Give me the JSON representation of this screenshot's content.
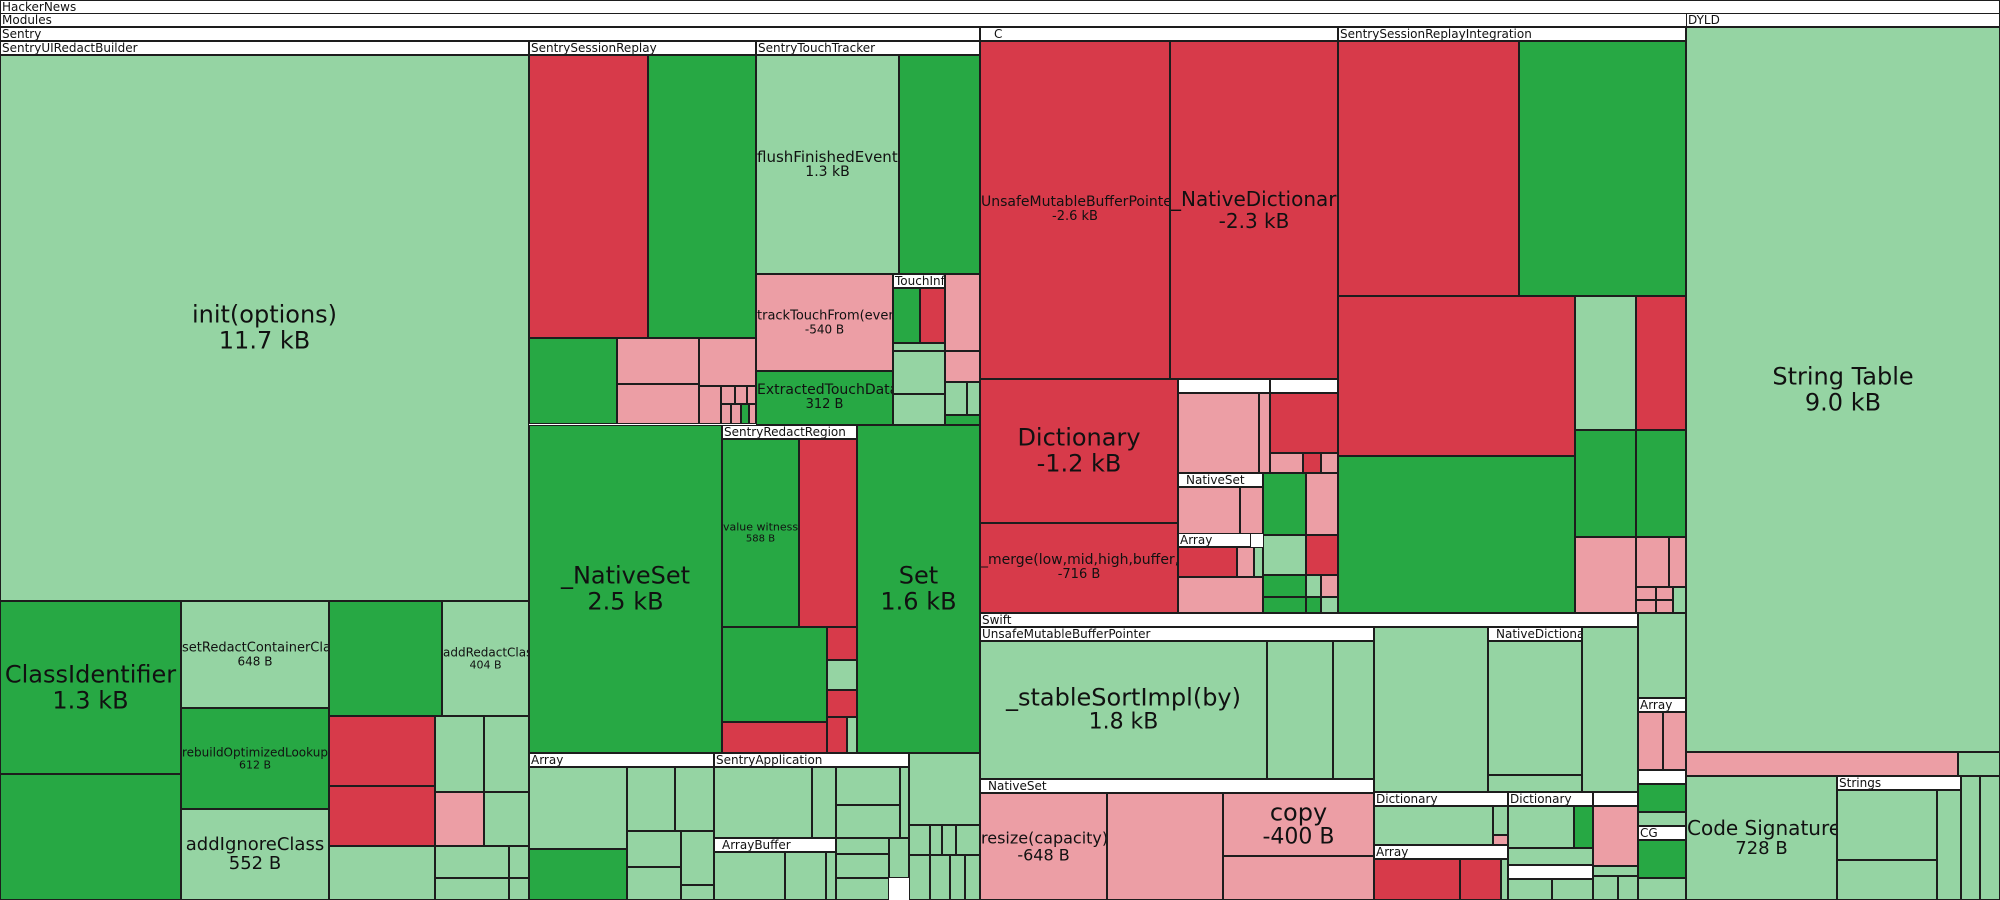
{
  "title": "HackerNews",
  "colors": {
    "growth_strong": "#27a844",
    "growth_light": "#95d4a3",
    "shrink_strong": "#d73a4a",
    "shrink_light": "#ec9ea5",
    "header": "#ffffff",
    "border": "#1d1d1d"
  },
  "chart_data": {
    "type": "treemap",
    "title": "HackerNews",
    "value_unit": "bytes (size change)",
    "groups": [
      {
        "name": "Modules"
      },
      {
        "name": "Sentry"
      },
      {
        "name": "SentryUIRedactBuilder"
      },
      {
        "name": "SentrySessionReplay"
      },
      {
        "name": "SentryTouchTracker"
      },
      {
        "name": "TouchInfo"
      },
      {
        "name": "SentryRedactRegion"
      },
      {
        "name": "__C"
      },
      {
        "name": "_NativeSet"
      },
      {
        "name": "Array"
      },
      {
        "name": "SentrySessionReplayIntegration"
      },
      {
        "name": "Swift"
      },
      {
        "name": "UnsafeMutableBufferPointer"
      },
      {
        "name": "_NativeDictionary"
      },
      {
        "name": "_NativeSet"
      },
      {
        "name": "Dictionary"
      },
      {
        "name": "Array"
      },
      {
        "name": "Array"
      },
      {
        "name": "SentryApplication"
      },
      {
        "name": "_ArrayBuffer"
      },
      {
        "name": "Array"
      },
      {
        "name": "CG"
      },
      {
        "name": "DYLD"
      },
      {
        "name": "Strings"
      }
    ],
    "labeled_nodes": [
      {
        "name": "init(options)",
        "size": "11.7 kB"
      },
      {
        "name": "ClassIdentifier",
        "size": "1.3 kB"
      },
      {
        "name": "setRedactContainerClass",
        "size": "648 B"
      },
      {
        "name": "addRedactClass",
        "size": "404 B"
      },
      {
        "name": "rebuildOptimizedLookups",
        "size": "612 B"
      },
      {
        "name": "addIgnoreClass",
        "size": "552 B"
      },
      {
        "name": "flushFinishedEvents",
        "size": "1.3 kB"
      },
      {
        "name": "trackTouchFrom(event)",
        "size": "-540 B"
      },
      {
        "name": "ExtractedTouchData",
        "size": "312 B"
      },
      {
        "name": "_NativeSet",
        "size": "2.5 kB"
      },
      {
        "name": "value witness",
        "size": "588 B"
      },
      {
        "name": "Set",
        "size": "1.6 kB"
      },
      {
        "name": "UnsafeMutableBufferPointer",
        "size": "-2.6 kB"
      },
      {
        "name": "_NativeDictionary",
        "size": "-2.3 kB"
      },
      {
        "name": "Dictionary",
        "size": "-1.2 kB"
      },
      {
        "name": "_merge(low,mid,high,buffer,by)",
        "size": "-716 B"
      },
      {
        "name": "_stableSortImpl(by)",
        "size": "1.8 kB"
      },
      {
        "name": "resize(capacity)",
        "size": "-648 B"
      },
      {
        "name": "copy",
        "size": "-400 B"
      },
      {
        "name": "String Table",
        "size": "9.0 kB"
      },
      {
        "name": "Code Signature",
        "size": "728 B"
      }
    ]
  }
}
